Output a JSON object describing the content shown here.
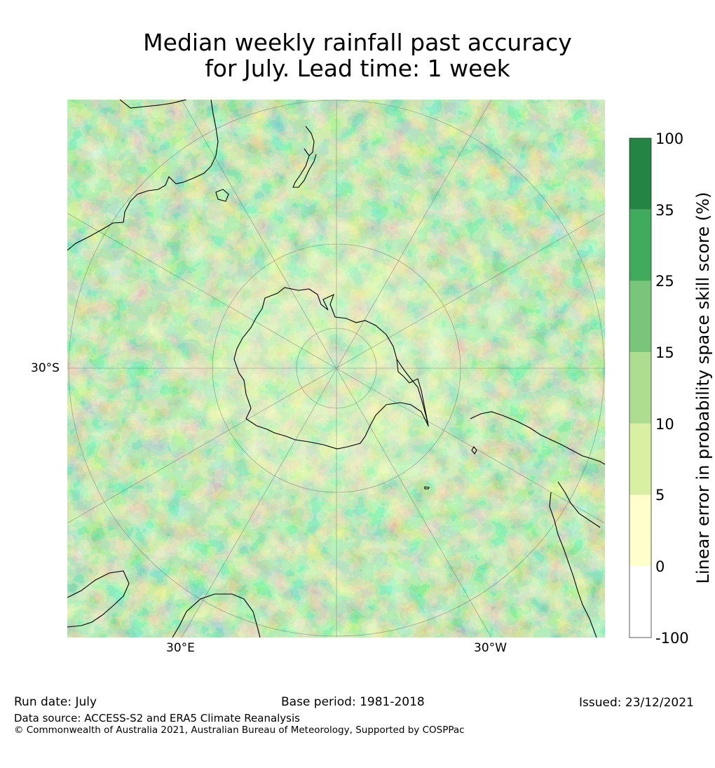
{
  "title": {
    "line1": "Median weekly rainfall past accuracy",
    "line2": "for July. Lead time: 1 week"
  },
  "map": {
    "lat_label": "30°S",
    "lon_labels": {
      "east": "30°E",
      "west": "30°W"
    },
    "palette": {
      "c1": "#ffffcc",
      "c2": "#d9f0a3",
      "c3": "#addd8e",
      "c4": "#78c679",
      "c5": "#41ab5d",
      "c6": "#238443",
      "coast": "#000000",
      "grid": "#6b6b6b"
    }
  },
  "colorbar": {
    "label": "Linear error in probability space skill score (%)",
    "ticks": [
      "100",
      "35",
      "25",
      "15",
      "10",
      "5",
      "0",
      "-100"
    ],
    "bins": [
      {
        "from": "-100",
        "to": "0",
        "color": "#ffffff"
      },
      {
        "from": "0",
        "to": "5",
        "color": "#ffffcc"
      },
      {
        "from": "5",
        "to": "10",
        "color": "#d9f0a3"
      },
      {
        "from": "10",
        "to": "15",
        "color": "#addd8e"
      },
      {
        "from": "15",
        "to": "25",
        "color": "#78c679"
      },
      {
        "from": "25",
        "to": "35",
        "color": "#41ab5d"
      },
      {
        "from": "35",
        "to": "100",
        "color": "#238443"
      }
    ]
  },
  "footer": {
    "run_date": "Run date: July",
    "base_period": "Base period: 1981-2018",
    "issued": "Issued: 23/12/2021",
    "data_source": "Data source: ACCESS-S2 and ERA5 Climate Reanalysis",
    "copyright": "© Commonwealth of Australia 2021, Australian Bureau of Meteorology, Supported by COSPPac"
  }
}
